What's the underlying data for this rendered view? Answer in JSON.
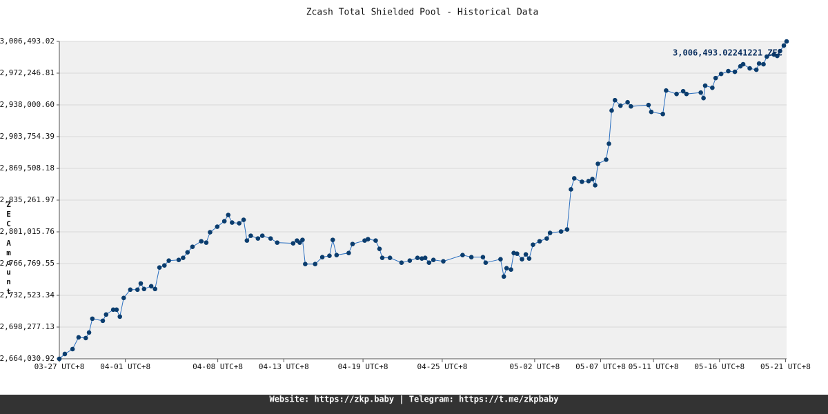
{
  "chart_data": {
    "type": "line",
    "title": "Zcash Total Shielded Pool - Historical Data",
    "y_label": "ZEC Amount",
    "annotation": "3,006,493.02241221 ZEC",
    "footer": "Website: https://zkp.baby | Telegram: https://t.me/zkpbaby",
    "grid": true,
    "xlim": [
      "03-27 00:00",
      "05-21 02:00"
    ],
    "ylim": [
      2664030.92,
      3006493.02
    ],
    "yticks": [
      {
        "value": 2664030.92,
        "label": "2,664,030.92"
      },
      {
        "value": 2698277.13,
        "label": "2,698,277.13"
      },
      {
        "value": 2732523.34,
        "label": "2,732,523.34"
      },
      {
        "value": 2766769.55,
        "label": "2,766,769.55"
      },
      {
        "value": 2801015.76,
        "label": "2,801,015.76"
      },
      {
        "value": 2835261.97,
        "label": "2,835,261.97"
      },
      {
        "value": 2869508.18,
        "label": "2,869,508.18"
      },
      {
        "value": 2903754.39,
        "label": "2,903,754.39"
      },
      {
        "value": 2938000.6,
        "label": "2,938,000.60"
      },
      {
        "value": 2972246.81,
        "label": "2,972,246.81"
      },
      {
        "value": 3006493.02,
        "label": "3,006,493.02"
      }
    ],
    "xticks": [
      {
        "value": "03-27 00:00",
        "label": "03-27 UTC+8"
      },
      {
        "value": "04-01 00:00",
        "label": "04-01 UTC+8"
      },
      {
        "value": "04-08 00:00",
        "label": "04-08 UTC+8"
      },
      {
        "value": "04-13 00:00",
        "label": "04-13 UTC+8"
      },
      {
        "value": "04-19 00:00",
        "label": "04-19 UTC+8"
      },
      {
        "value": "04-25 00:00",
        "label": "04-25 UTC+8"
      },
      {
        "value": "05-02 00:00",
        "label": "05-02 UTC+8"
      },
      {
        "value": "05-07 00:00",
        "label": "05-07 UTC+8"
      },
      {
        "value": "05-11 00:00",
        "label": "05-11 UTC+8"
      },
      {
        "value": "05-16 00:00",
        "label": "05-16 UTC+8"
      },
      {
        "value": "05-21 00:00",
        "label": "05-21 UTC+8"
      }
    ],
    "x": [
      "03-27 00:00",
      "03-27 10:00",
      "03-28 00:00",
      "03-28 11:00",
      "03-29 00:00",
      "03-29 06:00",
      "03-29 12:00",
      "03-30 07:00",
      "03-30 13:00",
      "03-31 02:00",
      "03-31 08:00",
      "03-31 14:00",
      "03-31 21:00",
      "04-01 09:00",
      "04-01 22:00",
      "04-02 04:00",
      "04-02 10:00",
      "04-02 23:00",
      "04-03 06:00",
      "04-03 14:00",
      "04-03 23:00",
      "04-04 07:00",
      "04-05 01:00",
      "04-05 09:00",
      "04-05 17:00",
      "04-06 02:00",
      "04-06 18:00",
      "04-07 03:00",
      "04-07 10:00",
      "04-07 23:00",
      "04-08 12:00",
      "04-08 19:00",
      "04-09 02:00",
      "04-09 15:00",
      "04-09 23:00",
      "04-10 05:00",
      "04-10 12:00",
      "04-11 01:00",
      "04-11 09:00",
      "04-12 00:00",
      "04-12 12:00",
      "04-13 17:00",
      "04-14 00:00",
      "04-14 05:00",
      "04-14 10:00",
      "04-14 15:00",
      "04-15 09:00",
      "04-15 22:00",
      "04-16 11:00",
      "04-16 17:00",
      "04-17 00:00",
      "04-17 22:00",
      "04-18 05:00",
      "04-19 03:00",
      "04-19 09:00",
      "04-19 23:00",
      "04-20 06:00",
      "04-20 11:00",
      "04-21 01:00",
      "04-21 22:00",
      "04-22 13:00",
      "04-23 03:00",
      "04-23 11:00",
      "04-23 17:00",
      "04-24 00:00",
      "04-24 08:00",
      "04-25 02:00",
      "04-26 13:00",
      "04-27 05:00",
      "04-28 02:00",
      "04-28 07:00",
      "04-29 10:00",
      "04-29 16:00",
      "04-29 21:00",
      "04-30 05:00",
      "04-30 10:00",
      "04-30 16:00",
      "05-01 01:00",
      "05-01 08:00",
      "05-01 14:00",
      "05-01 21:00",
      "05-02 09:00",
      "05-02 22:00",
      "05-03 04:00",
      "05-04 00:00",
      "05-04 11:00",
      "05-04 18:00",
      "05-05 00:00",
      "05-05 14:00",
      "05-06 02:00",
      "05-06 09:00",
      "05-06 14:00",
      "05-06 19:00",
      "05-07 10:00",
      "05-07 15:00",
      "05-07 20:00",
      "05-08 02:00",
      "05-08 12:00",
      "05-09 01:00",
      "05-09 07:00",
      "05-10 15:00",
      "05-10 20:00",
      "05-11 17:00",
      "05-11 23:00",
      "05-12 18:00",
      "05-13 06:00",
      "05-13 12:00",
      "05-14 14:00",
      "05-14 19:00",
      "05-14 22:00",
      "05-15 11:00",
      "05-15 17:00",
      "05-16 03:00",
      "05-16 16:00",
      "05-17 04:00",
      "05-17 14:00",
      "05-17 19:00",
      "05-18 07:00",
      "05-18 19:00",
      "05-19 00:00",
      "05-19 08:00",
      "05-19 14:00",
      "05-20 03:00",
      "05-20 09:00",
      "05-20 14:00",
      "05-20 21:00",
      "05-21 02:00"
    ],
    "series": [
      {
        "name": "ZEC Amount",
        "color": "#0b3d6e",
        "line_color": "#2a6fc0",
        "values": [
          2664031,
          2669254,
          2674476,
          2687160,
          2686414,
          2692383,
          2707305,
          2705067,
          2711781,
          2717004,
          2717004,
          2709543,
          2729688,
          2738641,
          2738641,
          2745356,
          2739387,
          2742372,
          2739387,
          2762516,
          2764755,
          2769977,
          2770723,
          2772962,
          2778930,
          2784899,
          2790868,
          2789376,
          2800567,
          2806536,
          2812505,
          2819220,
          2811013,
          2810267,
          2813997,
          2791614,
          2796837,
          2793852,
          2796837,
          2793852,
          2789376,
          2788630,
          2791614,
          2789376,
          2792360,
          2766247,
          2766247,
          2773708,
          2775200,
          2792360,
          2775946,
          2778184,
          2787884,
          2791614,
          2793106,
          2791614,
          2782661,
          2772962,
          2772962,
          2767739,
          2769977,
          2772962,
          2772216,
          2772962,
          2767739,
          2770723,
          2769231,
          2775946,
          2773708,
          2773708,
          2767739,
          2771469,
          2752817,
          2761770,
          2760278,
          2778184,
          2777438,
          2771469,
          2776692,
          2772216,
          2787138,
          2790868,
          2793852,
          2799821,
          2801313,
          2803552,
          2846826,
          2858763,
          2855033,
          2855779,
          2858017,
          2851302,
          2874431,
          2878908,
          2896068,
          2931881,
          2943072,
          2937104,
          2940834,
          2936358,
          2937850,
          2930389,
          2928150,
          2953518,
          2949787,
          2952772,
          2949787,
          2951280,
          2945311,
          2958741,
          2956502,
          2966948,
          2971424,
          2974409,
          2973663,
          2979631,
          2981870,
          2977393,
          2975901,
          2982616,
          2981870,
          2990077,
          2992315,
          2990823,
          2996046,
          3002014,
          3006493.02241221
        ]
      }
    ]
  }
}
